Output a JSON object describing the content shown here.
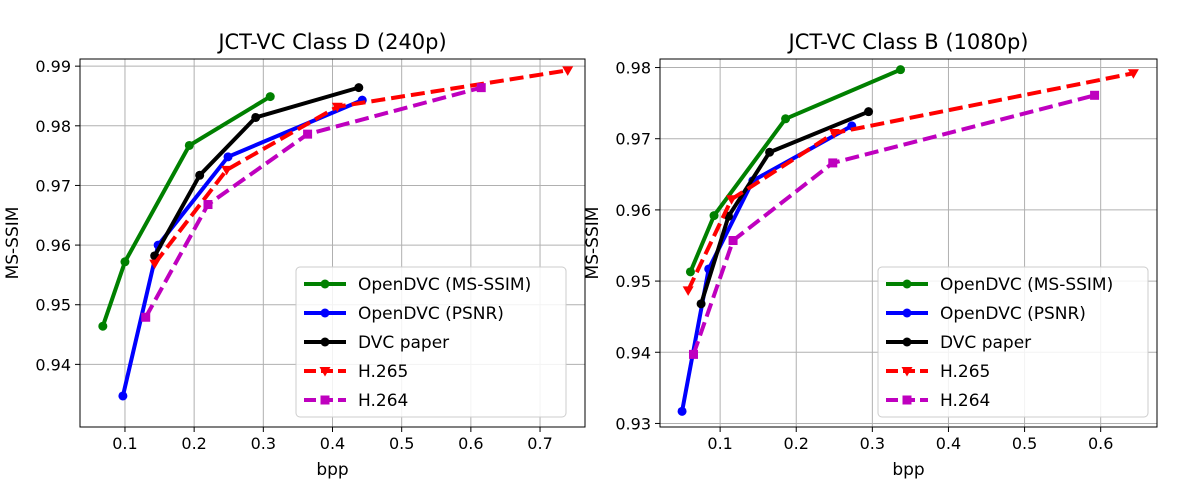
{
  "chart_data": [
    {
      "type": "line",
      "title": "JCT-VC Class D (240p)",
      "xlabel": "bpp",
      "ylabel": "MS-SSIM",
      "xlim": [
        0.035,
        0.765
      ],
      "ylim": [
        0.9295,
        0.9912
      ],
      "xticks": [
        0.1,
        0.2,
        0.3,
        0.4,
        0.5,
        0.6,
        0.7
      ],
      "xtick_labels": [
        "0.1",
        "0.2",
        "0.3",
        "0.4",
        "0.5",
        "0.6",
        "0.7"
      ],
      "yticks": [
        0.94,
        0.95,
        0.96,
        0.97,
        0.98,
        0.99
      ],
      "ytick_labels": [
        "0.94",
        "0.95",
        "0.96",
        "0.97",
        "0.98",
        "0.99"
      ],
      "grid": true,
      "legend_position": "lower-right",
      "series": [
        {
          "name": "OpenDVC (MS-SSIM)",
          "color": "#008000",
          "dash": "solid",
          "marker": "circle",
          "x": [
            0.068,
            0.1,
            0.193,
            0.31
          ],
          "y": [
            0.9464,
            0.9572,
            0.9767,
            0.9849
          ]
        },
        {
          "name": "OpenDVC (PSNR)",
          "color": "#0000ff",
          "dash": "solid",
          "marker": "circle",
          "x": [
            0.097,
            0.148,
            0.249,
            0.443
          ],
          "y": [
            0.9347,
            0.96,
            0.9748,
            0.9843
          ]
        },
        {
          "name": "DVC paper",
          "color": "#000000",
          "dash": "solid",
          "marker": "circle",
          "x": [
            0.143,
            0.208,
            0.289,
            0.438
          ],
          "y": [
            0.9582,
            0.9717,
            0.9814,
            0.9864
          ]
        },
        {
          "name": "H.265",
          "color": "#ff0000",
          "dash": "dashed",
          "marker": "triangle-down",
          "x": [
            0.143,
            0.247,
            0.407,
            0.74
          ],
          "y": [
            0.9569,
            0.9726,
            0.9832,
            0.9893
          ]
        },
        {
          "name": "H.264",
          "color": "#bf00bf",
          "dash": "dashed",
          "marker": "square",
          "x": [
            0.13,
            0.22,
            0.364,
            0.615
          ],
          "y": [
            0.9479,
            0.9668,
            0.9786,
            0.9864
          ]
        }
      ]
    },
    {
      "type": "line",
      "title": "JCT-VC Class B (1080p)",
      "xlabel": "bpp",
      "ylabel": "MS-SSIM",
      "xlim": [
        0.021,
        0.674
      ],
      "ylim": [
        0.9295,
        0.9812
      ],
      "xticks": [
        0.1,
        0.2,
        0.3,
        0.4,
        0.5,
        0.6
      ],
      "xtick_labels": [
        "0.1",
        "0.2",
        "0.3",
        "0.4",
        "0.5",
        "0.6"
      ],
      "yticks": [
        0.93,
        0.94,
        0.95,
        0.96,
        0.97,
        0.98
      ],
      "ytick_labels": [
        "0.93",
        "0.94",
        "0.95",
        "0.96",
        "0.97",
        "0.98"
      ],
      "grid": true,
      "legend_position": "lower-right",
      "series": [
        {
          "name": "OpenDVC (MS-SSIM)",
          "color": "#008000",
          "dash": "solid",
          "marker": "circle",
          "x": [
            0.061,
            0.092,
            0.186,
            0.337
          ],
          "y": [
            0.9513,
            0.9592,
            0.9728,
            0.9797
          ]
        },
        {
          "name": "OpenDVC (PSNR)",
          "color": "#0000ff",
          "dash": "solid",
          "marker": "circle",
          "x": [
            0.05,
            0.085,
            0.143,
            0.273
          ],
          "y": [
            0.9317,
            0.9517,
            0.9641,
            0.9718
          ]
        },
        {
          "name": "DVC paper",
          "color": "#000000",
          "dash": "solid",
          "marker": "circle",
          "x": [
            0.075,
            0.111,
            0.165,
            0.295
          ],
          "y": [
            0.9468,
            0.9591,
            0.9681,
            0.9738
          ]
        },
        {
          "name": "H.265",
          "color": "#ff0000",
          "dash": "dashed",
          "marker": "triangle-down",
          "x": [
            0.058,
            0.115,
            0.25,
            0.643
          ],
          "y": [
            0.9487,
            0.9615,
            0.9708,
            0.9792
          ]
        },
        {
          "name": "H.264",
          "color": "#bf00bf",
          "dash": "dashed",
          "marker": "square",
          "x": [
            0.065,
            0.117,
            0.248,
            0.592
          ],
          "y": [
            0.9397,
            0.9557,
            0.9666,
            0.9761
          ]
        }
      ]
    }
  ]
}
